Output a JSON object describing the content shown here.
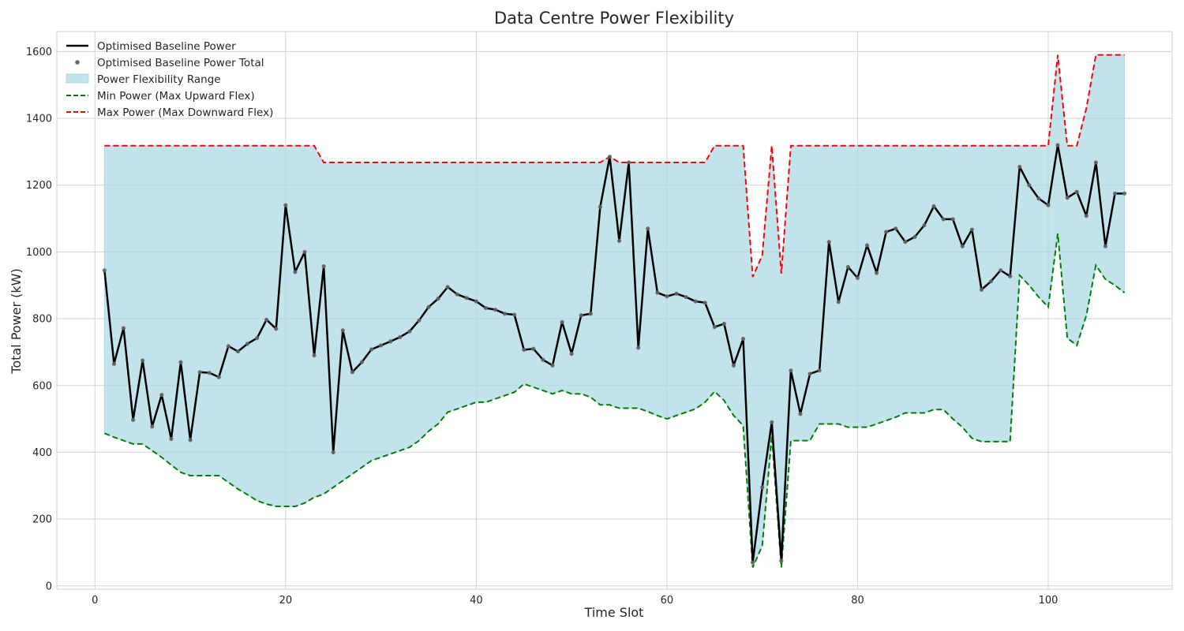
{
  "chart_data": {
    "type": "line",
    "title": "Data Centre Power Flexibility",
    "xlabel": "Time Slot",
    "ylabel": "Total Power (kW)",
    "xlim": [
      -4,
      113
    ],
    "ylim": [
      -10,
      1660
    ],
    "xticks": [
      0,
      20,
      40,
      60,
      80,
      100
    ],
    "yticks": [
      0,
      200,
      400,
      600,
      800,
      1000,
      1200,
      1400,
      1600
    ],
    "grid": true,
    "legend_position": "top-left",
    "colors": {
      "baseline": "#000000",
      "points": "#666666",
      "range_fill": "#add8e6",
      "min": "#008000",
      "max": "#ff0000"
    },
    "legend": [
      {
        "key": "baseline",
        "label": "Optimised Baseline Power",
        "style": "line"
      },
      {
        "key": "points",
        "label": "Optimised Baseline Power Total",
        "style": "marker"
      },
      {
        "key": "range",
        "label": "Power Flexibility Range",
        "style": "patch"
      },
      {
        "key": "min",
        "label": "Min Power (Max Upward Flex)",
        "style": "dashed-green"
      },
      {
        "key": "max",
        "label": "Max Power (Max Downward Flex)",
        "style": "dashed-red"
      }
    ],
    "x": [
      1,
      2,
      3,
      4,
      5,
      6,
      7,
      8,
      9,
      10,
      11,
      12,
      13,
      14,
      15,
      16,
      17,
      18,
      19,
      20,
      21,
      22,
      23,
      24,
      25,
      26,
      27,
      28,
      29,
      30,
      31,
      32,
      33,
      34,
      35,
      36,
      37,
      38,
      39,
      40,
      41,
      42,
      43,
      44,
      45,
      46,
      47,
      48,
      49,
      50,
      51,
      52,
      53,
      54,
      55,
      56,
      57,
      58,
      59,
      60,
      61,
      62,
      63,
      64,
      65,
      66,
      67,
      68,
      69,
      70,
      71,
      72,
      73,
      74,
      75,
      76,
      77,
      78,
      79,
      80,
      81,
      82,
      83,
      84,
      85,
      86,
      87,
      88,
      89,
      90,
      91,
      92,
      93,
      94,
      95,
      96,
      97,
      98,
      99,
      100,
      101,
      102,
      103,
      104,
      105,
      106,
      107,
      108
    ],
    "series": [
      {
        "name": "Optimised Baseline Power",
        "values": [
          945,
          665,
          772,
          497,
          675,
          477,
          572,
          440,
          670,
          437,
          640,
          638,
          625,
          718,
          702,
          725,
          742,
          797,
          770,
          1140,
          940,
          1000,
          690,
          957,
          400,
          765,
          640,
          670,
          708,
          720,
          732,
          745,
          762,
          795,
          835,
          860,
          895,
          873,
          862,
          852,
          832,
          827,
          815,
          812,
          707,
          710,
          677,
          660,
          790,
          695,
          810,
          815,
          1135,
          1285,
          1033,
          1268,
          713,
          1070,
          878,
          867,
          875,
          865,
          852,
          848,
          775,
          785,
          660,
          740,
          70,
          295,
          490,
          75,
          645,
          515,
          635,
          645,
          1030,
          850,
          955,
          922,
          1020,
          937,
          1060,
          1070,
          1030,
          1045,
          1080,
          1137,
          1098,
          1098,
          1017,
          1067,
          887,
          912,
          945,
          927,
          1255,
          1200,
          1160,
          1140,
          1320,
          1162,
          1180,
          1108,
          1268,
          1017,
          1175,
          1175
        ]
      },
      {
        "name": "Min Power (Max Upward Flex)",
        "values": [
          457,
          445,
          435,
          425,
          425,
          405,
          385,
          362,
          340,
          330,
          330,
          330,
          330,
          310,
          290,
          273,
          255,
          245,
          238,
          238,
          238,
          248,
          265,
          275,
          295,
          315,
          335,
          355,
          375,
          385,
          395,
          405,
          415,
          435,
          463,
          485,
          520,
          530,
          540,
          550,
          550,
          560,
          570,
          580,
          605,
          595,
          585,
          575,
          585,
          575,
          575,
          565,
          542,
          542,
          532,
          532,
          532,
          522,
          510,
          500,
          510,
          520,
          530,
          550,
          582,
          555,
          510,
          480,
          55,
          120,
          450,
          55,
          435,
          435,
          435,
          485,
          485,
          485,
          475,
          475,
          475,
          485,
          495,
          505,
          518,
          518,
          518,
          528,
          528,
          500,
          475,
          442,
          432,
          432,
          432,
          432,
          930,
          900,
          865,
          835,
          1055,
          742,
          720,
          810,
          960,
          918,
          900,
          878
        ]
      },
      {
        "name": "Max Power (Max Downward Flex)",
        "values": [
          1318,
          1318,
          1318,
          1318,
          1318,
          1318,
          1318,
          1318,
          1318,
          1318,
          1318,
          1318,
          1318,
          1318,
          1318,
          1318,
          1318,
          1318,
          1318,
          1318,
          1318,
          1318,
          1318,
          1268,
          1268,
          1268,
          1268,
          1268,
          1268,
          1268,
          1268,
          1268,
          1268,
          1268,
          1268,
          1268,
          1268,
          1268,
          1268,
          1268,
          1268,
          1268,
          1268,
          1268,
          1268,
          1268,
          1268,
          1268,
          1268,
          1268,
          1268,
          1268,
          1268,
          1285,
          1268,
          1268,
          1268,
          1268,
          1268,
          1268,
          1268,
          1268,
          1268,
          1268,
          1318,
          1318,
          1318,
          1318,
          925,
          990,
          1318,
          935,
          1318,
          1318,
          1318,
          1318,
          1318,
          1318,
          1318,
          1318,
          1318,
          1318,
          1318,
          1318,
          1318,
          1318,
          1318,
          1318,
          1318,
          1318,
          1318,
          1318,
          1318,
          1318,
          1318,
          1318,
          1318,
          1318,
          1318,
          1318,
          1590,
          1318,
          1318,
          1430,
          1590,
          1590,
          1590,
          1590
        ]
      }
    ]
  }
}
